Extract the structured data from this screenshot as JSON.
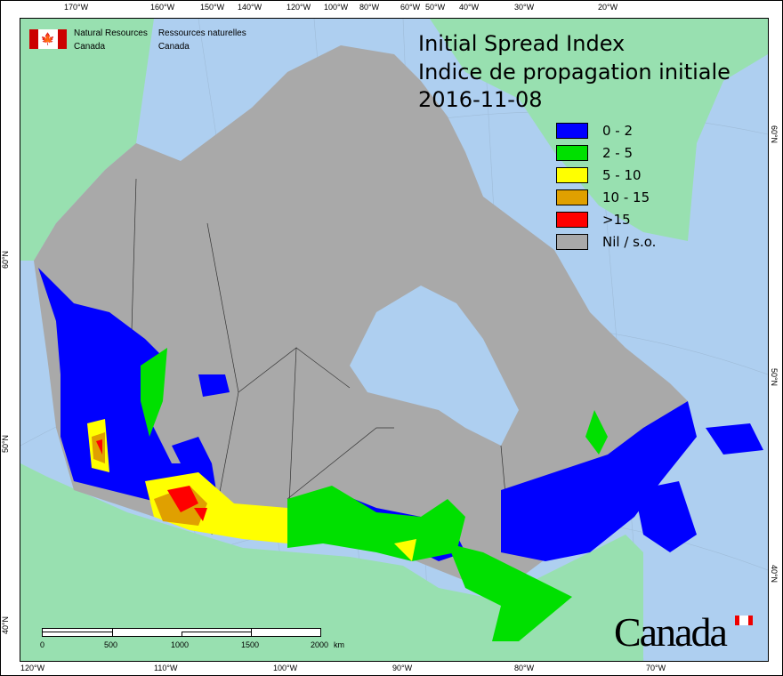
{
  "title": {
    "line1": "Initial Spread Index",
    "line2": "Indice de propagation initiale",
    "date": "2016-11-08"
  },
  "agency": {
    "name_en_1": "Natural Resources",
    "name_en_2": "Canada",
    "name_fr_1": "Ressources naturelles",
    "name_fr_2": "Canada",
    "wordmark": "Canada"
  },
  "legend": [
    {
      "label": "0 - 2",
      "color": "#0000ff"
    },
    {
      "label": "2 - 5",
      "color": "#00e000"
    },
    {
      "label": "5 - 10",
      "color": "#ffff00"
    },
    {
      "label": "10 - 15",
      "color": "#e0a000"
    },
    {
      "label": ">15",
      "color": "#ff0000"
    },
    {
      "label": "Nil / s.o.",
      "color": "#a9a9a9"
    }
  ],
  "colors": {
    "water": "#aecff0",
    "foreign_land": "#98e0b0",
    "no_data": "#a9a9a9"
  },
  "axes": {
    "top": [
      "170°W",
      "160°W",
      "150°W",
      "140°W",
      "120°W",
      "100°W",
      "80°W",
      "60°W",
      "50°W",
      "40°W",
      "30°W",
      "20°W"
    ],
    "bottom": [
      "120°W",
      "110°W",
      "100°W",
      "90°W",
      "80°W",
      "70°W"
    ],
    "left": [
      "60°N",
      "50°N",
      "40°N"
    ],
    "right": [
      "60°N",
      "50°N",
      "40°N"
    ]
  },
  "scale": {
    "ticks": [
      "0",
      "500",
      "1000",
      "1500",
      "2000"
    ],
    "unit": "km"
  }
}
